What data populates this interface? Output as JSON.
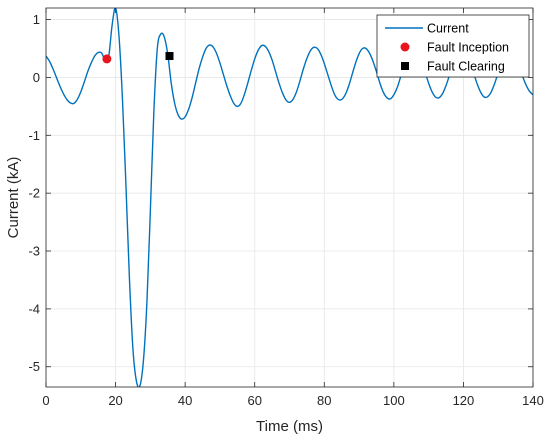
{
  "chart_data": {
    "type": "line",
    "xlabel": "Time (ms)",
    "ylabel": "Current (kA)",
    "xlim": [
      0,
      140
    ],
    "ylim": [
      -5.35,
      1.2
    ],
    "xticks": [
      0,
      20,
      40,
      60,
      80,
      100,
      120,
      140
    ],
    "xtick_labels": [
      "0",
      "20",
      "40",
      "60",
      "80",
      "100",
      "120",
      "140"
    ],
    "yticks": [
      -5,
      -4,
      -3,
      -2,
      -1,
      0,
      1
    ],
    "ytick_labels": [
      "-5",
      "-4",
      "-3",
      "-2",
      "-1",
      "0",
      "1"
    ],
    "grid": true,
    "legend_position": "top-right",
    "series": [
      {
        "name": "Current",
        "kind": "line",
        "color": "#0072BD",
        "x": [
          0,
          1,
          2,
          3,
          4,
          5,
          6,
          7,
          8,
          9,
          10,
          11,
          12,
          13,
          14,
          15,
          16,
          17,
          18,
          19,
          20,
          21,
          22,
          23,
          24,
          25,
          26,
          27,
          28,
          29,
          30,
          31,
          32,
          33,
          34,
          35,
          36,
          37,
          38,
          39,
          40,
          41,
          42,
          43,
          44,
          45,
          46,
          47,
          48,
          49,
          50,
          51,
          52,
          53,
          54,
          55,
          56,
          57,
          58,
          59,
          60,
          61,
          62,
          63,
          64,
          65,
          66,
          67,
          68,
          69,
          70,
          71,
          72,
          73,
          74,
          75,
          76,
          77,
          78,
          79,
          80,
          81,
          82,
          83,
          84,
          85,
          86,
          87,
          88,
          89,
          90,
          91,
          92,
          93,
          94,
          95,
          96,
          97,
          98,
          99,
          100,
          101,
          102,
          103,
          104,
          105,
          106,
          107,
          108,
          109,
          110,
          111,
          112,
          113,
          114,
          115,
          116,
          117,
          118,
          119,
          120,
          121,
          122,
          123,
          124,
          125,
          126,
          127,
          128,
          129,
          130,
          131,
          132,
          133,
          134,
          135,
          136,
          137,
          138,
          139,
          140
        ],
        "values": [
          0.37,
          0.28,
          0.15,
          0.0,
          -0.15,
          -0.28,
          -0.38,
          -0.44,
          -0.45,
          -0.38,
          -0.25,
          -0.08,
          0.1,
          0.25,
          0.37,
          0.43,
          0.42,
          0.3,
          0.35,
          0.9,
          1.2,
          0.7,
          -0.4,
          -1.9,
          -3.5,
          -4.7,
          -5.25,
          -5.33,
          -4.9,
          -3.9,
          -2.3,
          -0.6,
          0.5,
          0.75,
          0.7,
          0.4,
          -0.1,
          -0.45,
          -0.65,
          -0.72,
          -0.68,
          -0.55,
          -0.35,
          -0.1,
          0.15,
          0.35,
          0.5,
          0.56,
          0.53,
          0.42,
          0.25,
          0.05,
          -0.15,
          -0.32,
          -0.45,
          -0.5,
          -0.45,
          -0.3,
          -0.1,
          0.12,
          0.32,
          0.47,
          0.55,
          0.54,
          0.45,
          0.3,
          0.1,
          -0.1,
          -0.27,
          -0.39,
          -0.43,
          -0.38,
          -0.25,
          -0.06,
          0.15,
          0.33,
          0.46,
          0.52,
          0.5,
          0.4,
          0.24,
          0.05,
          -0.14,
          -0.3,
          -0.38,
          -0.38,
          -0.3,
          -0.15,
          0.05,
          0.25,
          0.41,
          0.5,
          0.5,
          0.42,
          0.28,
          0.1,
          -0.1,
          -0.26,
          -0.35,
          -0.37,
          -0.3,
          -0.17,
          0.02,
          0.22,
          0.38,
          0.47,
          0.48,
          0.41,
          0.27,
          0.09,
          -0.1,
          -0.25,
          -0.34,
          -0.35,
          -0.28,
          -0.14,
          0.04,
          0.23,
          0.38,
          0.46,
          0.46,
          0.38,
          0.24,
          0.06,
          -0.12,
          -0.26,
          -0.34,
          -0.33,
          -0.25,
          -0.1,
          0.08,
          0.26,
          0.4,
          0.47,
          0.45,
          0.36,
          0.2,
          0.02,
          -0.13,
          -0.24,
          -0.3
        ]
      },
      {
        "name": "Fault Inception",
        "kind": "marker",
        "marker": "circle",
        "color": "#e8161c",
        "points": [
          {
            "x": 17.5,
            "y": 0.32
          }
        ]
      },
      {
        "name": "Fault Clearing",
        "kind": "marker",
        "marker": "square",
        "color": "#000000",
        "points": [
          {
            "x": 35.5,
            "y": 0.37
          }
        ]
      }
    ]
  }
}
